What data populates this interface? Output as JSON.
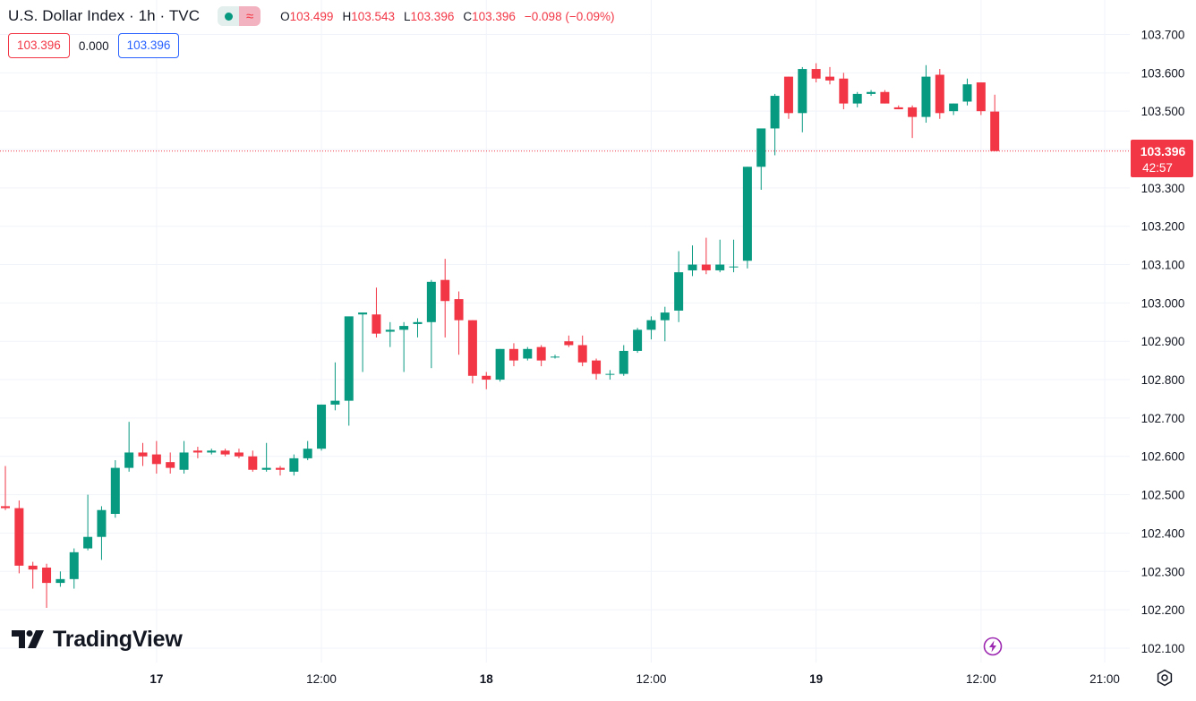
{
  "header": {
    "title": "U.S. Dollar Index · 1h · TVC",
    "ohlc": [
      {
        "key": "O",
        "value": "103.499"
      },
      {
        "key": "H",
        "value": "103.543"
      },
      {
        "key": "L",
        "value": "103.396"
      },
      {
        "key": "C",
        "value": "103.396"
      }
    ],
    "change": "−0.098 (−0.09%)"
  },
  "spread": {
    "sell": "103.396",
    "spread": "0.000",
    "buy": "103.396"
  },
  "price_tag": {
    "price": "103.396",
    "countdown": "42:57"
  },
  "logo_text": "TradingView",
  "icons": {
    "status": "lightning-icon",
    "settings": "gear-icon",
    "market": "market-dot-icon",
    "indicator": "approx-icon"
  },
  "colors": {
    "up": "#089981",
    "down": "#f23645",
    "grid": "#f0f3fa",
    "text": "#131722",
    "bolt": "#9c27b0"
  },
  "chart_data": {
    "type": "candlestick",
    "title": "U.S. Dollar Index · 1h · TVC",
    "interval": "1h",
    "ylim": [
      102.07,
      103.76
    ],
    "y_ticks": [
      "102.100",
      "102.200",
      "102.300",
      "102.400",
      "102.500",
      "102.600",
      "102.700",
      "102.800",
      "102.900",
      "103.000",
      "103.100",
      "103.200",
      "103.300",
      "103.400",
      "103.500",
      "103.600",
      "103.700"
    ],
    "x_ticks": [
      {
        "label": "17",
        "index": 11
      },
      {
        "label": "12:00",
        "index": 23
      },
      {
        "label": "18",
        "index": 35
      },
      {
        "label": "12:00",
        "index": 47
      },
      {
        "label": "19",
        "index": 59
      },
      {
        "label": "12:00",
        "index": 71
      },
      {
        "label": "21:00",
        "index": 80
      }
    ],
    "last_price": 103.396,
    "candles": [
      {
        "o": 102.47,
        "h": 102.575,
        "l": 102.46,
        "c": 102.465
      },
      {
        "o": 102.465,
        "h": 102.485,
        "l": 102.295,
        "c": 102.315
      },
      {
        "o": 102.315,
        "h": 102.325,
        "l": 102.255,
        "c": 102.305
      },
      {
        "o": 102.31,
        "h": 102.32,
        "l": 102.205,
        "c": 102.27
      },
      {
        "o": 102.27,
        "h": 102.3,
        "l": 102.26,
        "c": 102.28
      },
      {
        "o": 102.28,
        "h": 102.36,
        "l": 102.255,
        "c": 102.35
      },
      {
        "o": 102.36,
        "h": 102.5,
        "l": 102.355,
        "c": 102.39
      },
      {
        "o": 102.39,
        "h": 102.47,
        "l": 102.33,
        "c": 102.46
      },
      {
        "o": 102.45,
        "h": 102.59,
        "l": 102.44,
        "c": 102.57
      },
      {
        "o": 102.57,
        "h": 102.69,
        "l": 102.56,
        "c": 102.61
      },
      {
        "o": 102.61,
        "h": 102.635,
        "l": 102.575,
        "c": 102.6
      },
      {
        "o": 102.605,
        "h": 102.64,
        "l": 102.555,
        "c": 102.58
      },
      {
        "o": 102.585,
        "h": 102.61,
        "l": 102.555,
        "c": 102.57
      },
      {
        "o": 102.565,
        "h": 102.64,
        "l": 102.555,
        "c": 102.61
      },
      {
        "o": 102.615,
        "h": 102.625,
        "l": 102.595,
        "c": 102.61
      },
      {
        "o": 102.61,
        "h": 102.62,
        "l": 102.605,
        "c": 102.615
      },
      {
        "o": 102.615,
        "h": 102.62,
        "l": 102.6,
        "c": 102.605
      },
      {
        "o": 102.61,
        "h": 102.62,
        "l": 102.595,
        "c": 102.6
      },
      {
        "o": 102.6,
        "h": 102.615,
        "l": 102.56,
        "c": 102.565
      },
      {
        "o": 102.565,
        "h": 102.635,
        "l": 102.56,
        "c": 102.57
      },
      {
        "o": 102.57,
        "h": 102.575,
        "l": 102.55,
        "c": 102.565
      },
      {
        "o": 102.56,
        "h": 102.605,
        "l": 102.55,
        "c": 102.595
      },
      {
        "o": 102.595,
        "h": 102.64,
        "l": 102.59,
        "c": 102.62
      },
      {
        "o": 102.62,
        "h": 102.735,
        "l": 102.615,
        "c": 102.735
      },
      {
        "o": 102.735,
        "h": 102.845,
        "l": 102.72,
        "c": 102.745
      },
      {
        "o": 102.745,
        "h": 102.96,
        "l": 102.68,
        "c": 102.965
      },
      {
        "o": 102.97,
        "h": 102.975,
        "l": 102.82,
        "c": 102.975
      },
      {
        "o": 102.97,
        "h": 103.04,
        "l": 102.91,
        "c": 102.92
      },
      {
        "o": 102.925,
        "h": 102.95,
        "l": 102.885,
        "c": 102.93
      },
      {
        "o": 102.93,
        "h": 102.95,
        "l": 102.82,
        "c": 102.94
      },
      {
        "o": 102.945,
        "h": 102.96,
        "l": 102.91,
        "c": 102.95
      },
      {
        "o": 102.95,
        "h": 103.06,
        "l": 102.83,
        "c": 103.055
      },
      {
        "o": 103.06,
        "h": 103.115,
        "l": 102.91,
        "c": 103.005
      },
      {
        "o": 103.01,
        "h": 103.03,
        "l": 102.865,
        "c": 102.955
      },
      {
        "o": 102.955,
        "h": 102.955,
        "l": 102.79,
        "c": 102.81
      },
      {
        "o": 102.81,
        "h": 102.82,
        "l": 102.775,
        "c": 102.8
      },
      {
        "o": 102.8,
        "h": 102.88,
        "l": 102.795,
        "c": 102.88
      },
      {
        "o": 102.88,
        "h": 102.895,
        "l": 102.835,
        "c": 102.85
      },
      {
        "o": 102.855,
        "h": 102.885,
        "l": 102.85,
        "c": 102.88
      },
      {
        "o": 102.885,
        "h": 102.89,
        "l": 102.835,
        "c": 102.85
      },
      {
        "o": 102.86,
        "h": 102.865,
        "l": 102.855,
        "c": 102.86
      },
      {
        "o": 102.9,
        "h": 102.915,
        "l": 102.885,
        "c": 102.89
      },
      {
        "o": 102.89,
        "h": 102.915,
        "l": 102.835,
        "c": 102.845
      },
      {
        "o": 102.85,
        "h": 102.855,
        "l": 102.8,
        "c": 102.815
      },
      {
        "o": 102.815,
        "h": 102.825,
        "l": 102.8,
        "c": 102.815
      },
      {
        "o": 102.815,
        "h": 102.89,
        "l": 102.81,
        "c": 102.875
      },
      {
        "o": 102.875,
        "h": 102.935,
        "l": 102.87,
        "c": 102.93
      },
      {
        "o": 102.93,
        "h": 102.965,
        "l": 102.905,
        "c": 102.955
      },
      {
        "o": 102.955,
        "h": 102.99,
        "l": 102.9,
        "c": 102.975
      },
      {
        "o": 102.98,
        "h": 103.135,
        "l": 102.95,
        "c": 103.08
      },
      {
        "o": 103.085,
        "h": 103.15,
        "l": 103.07,
        "c": 103.1
      },
      {
        "o": 103.1,
        "h": 103.17,
        "l": 103.075,
        "c": 103.085
      },
      {
        "o": 103.085,
        "h": 103.165,
        "l": 103.08,
        "c": 103.1
      },
      {
        "o": 103.095,
        "h": 103.165,
        "l": 103.08,
        "c": 103.095
      },
      {
        "o": 103.11,
        "h": 103.355,
        "l": 103.09,
        "c": 103.355
      },
      {
        "o": 103.355,
        "h": 103.45,
        "l": 103.295,
        "c": 103.455
      },
      {
        "o": 103.455,
        "h": 103.545,
        "l": 103.385,
        "c": 103.54
      },
      {
        "o": 103.59,
        "h": 103.59,
        "l": 103.48,
        "c": 103.495
      },
      {
        "o": 103.495,
        "h": 103.615,
        "l": 103.445,
        "c": 103.61
      },
      {
        "o": 103.61,
        "h": 103.625,
        "l": 103.575,
        "c": 103.585
      },
      {
        "o": 103.59,
        "h": 103.615,
        "l": 103.57,
        "c": 103.58
      },
      {
        "o": 103.585,
        "h": 103.6,
        "l": 103.505,
        "c": 103.52
      },
      {
        "o": 103.52,
        "h": 103.55,
        "l": 103.51,
        "c": 103.545
      },
      {
        "o": 103.545,
        "h": 103.555,
        "l": 103.54,
        "c": 103.55
      },
      {
        "o": 103.55,
        "h": 103.555,
        "l": 103.52,
        "c": 103.52
      },
      {
        "o": 103.51,
        "h": 103.515,
        "l": 103.505,
        "c": 103.505
      },
      {
        "o": 103.51,
        "h": 103.515,
        "l": 103.43,
        "c": 103.485
      },
      {
        "o": 103.485,
        "h": 103.62,
        "l": 103.47,
        "c": 103.59
      },
      {
        "o": 103.595,
        "h": 103.61,
        "l": 103.48,
        "c": 103.495
      },
      {
        "o": 103.5,
        "h": 103.52,
        "l": 103.49,
        "c": 103.52
      },
      {
        "o": 103.525,
        "h": 103.585,
        "l": 103.515,
        "c": 103.57
      },
      {
        "o": 103.575,
        "h": 103.575,
        "l": 103.49,
        "c": 103.5
      },
      {
        "o": 103.499,
        "h": 103.543,
        "l": 103.396,
        "c": 103.396
      }
    ]
  }
}
